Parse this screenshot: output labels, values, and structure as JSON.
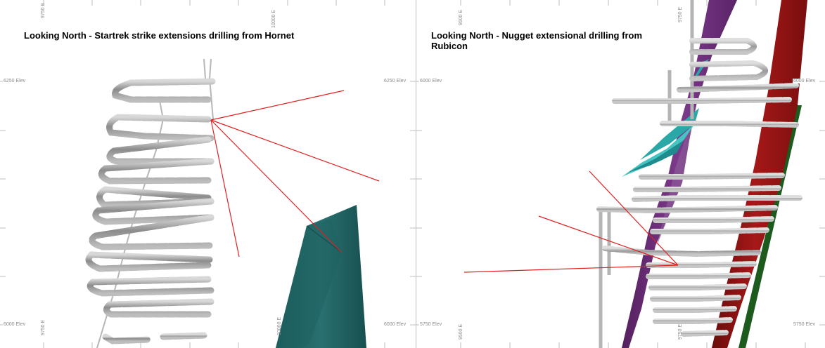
{
  "left_panel": {
    "title": "Looking North - Startrek strike extensions drilling from Hornet",
    "labels": {
      "elev_top_left": "6250 Elev",
      "elev_top_right": "6250 Elev",
      "elev_bottom_left": "6000 Elev",
      "elev_bottom_right": "6000 Elev",
      "east_top_left": "9750 E",
      "east_top_mid": "10000 E",
      "east_bottom_left": "9750 E",
      "east_bottom_mid": "10000 E"
    },
    "colors": {
      "drill_trace": "#e02020",
      "ore_body": "#1f6262",
      "development": "#9b9b9b"
    }
  },
  "right_panel": {
    "title": "Looking North - Nugget extensional drilling from Rubicon",
    "labels": {
      "elev_top_left": "6000 Elev",
      "elev_top_right": "6000 Elev",
      "elev_bottom_left": "5750 Elev",
      "elev_bottom_right": "5750 Elev",
      "east_top_left": "9500 E",
      "east_top_mid": "9750 E",
      "east_bottom_left": "9500 E",
      "east_bottom_mid": "9750 E"
    },
    "colors": {
      "drill_trace": "#e02020",
      "purple_lode": "#6a2a78",
      "red_lode": "#8e1212",
      "cyan_lode": "#2aa7a7",
      "green_lode": "#1d5a1d",
      "development": "#a0a0a0"
    }
  }
}
